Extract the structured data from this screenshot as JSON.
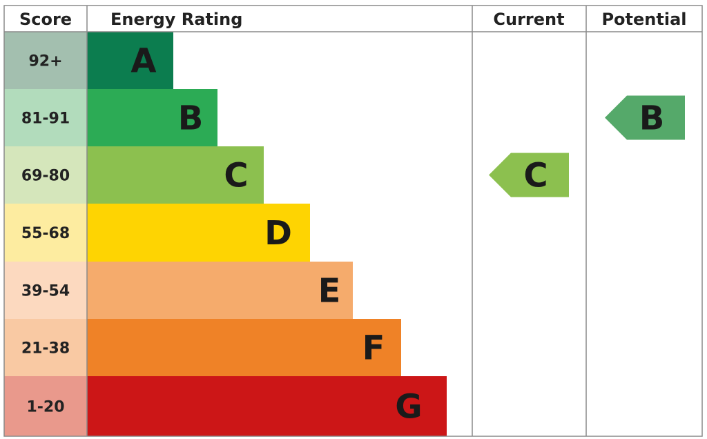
{
  "headers": {
    "score": "Score",
    "energy_rating": "Energy Rating",
    "current": "Current",
    "potential": "Potential"
  },
  "chart_data": {
    "type": "bar",
    "categories": [
      "A",
      "B",
      "C",
      "D",
      "E",
      "F",
      "G"
    ],
    "score_ranges": [
      "92+",
      "81-91",
      "69-80",
      "55-68",
      "39-54",
      "21-38",
      "1-20"
    ],
    "bands": [
      {
        "letter": "A",
        "range": "92+",
        "color": "#0c7d4f",
        "score_bg": "#a3bfaf"
      },
      {
        "letter": "B",
        "range": "81-91",
        "color": "#2cab55",
        "score_bg": "#b2dcbc"
      },
      {
        "letter": "C",
        "range": "69-80",
        "color": "#8cc04f",
        "score_bg": "#d5e6bb"
      },
      {
        "letter": "D",
        "range": "55-68",
        "color": "#fed402",
        "score_bg": "#fdeca0"
      },
      {
        "letter": "E",
        "range": "39-54",
        "color": "#f5ab6c",
        "score_bg": "#fcd9bf"
      },
      {
        "letter": "F",
        "range": "21-38",
        "color": "#ef8227",
        "score_bg": "#f9c9a3"
      },
      {
        "letter": "G",
        "range": "1-20",
        "color": "#cc1617",
        "score_bg": "#e9998c"
      }
    ],
    "current": {
      "letter": "C",
      "color": "#8cc04f"
    },
    "potential": {
      "letter": "B",
      "color": "#55a96a"
    }
  }
}
